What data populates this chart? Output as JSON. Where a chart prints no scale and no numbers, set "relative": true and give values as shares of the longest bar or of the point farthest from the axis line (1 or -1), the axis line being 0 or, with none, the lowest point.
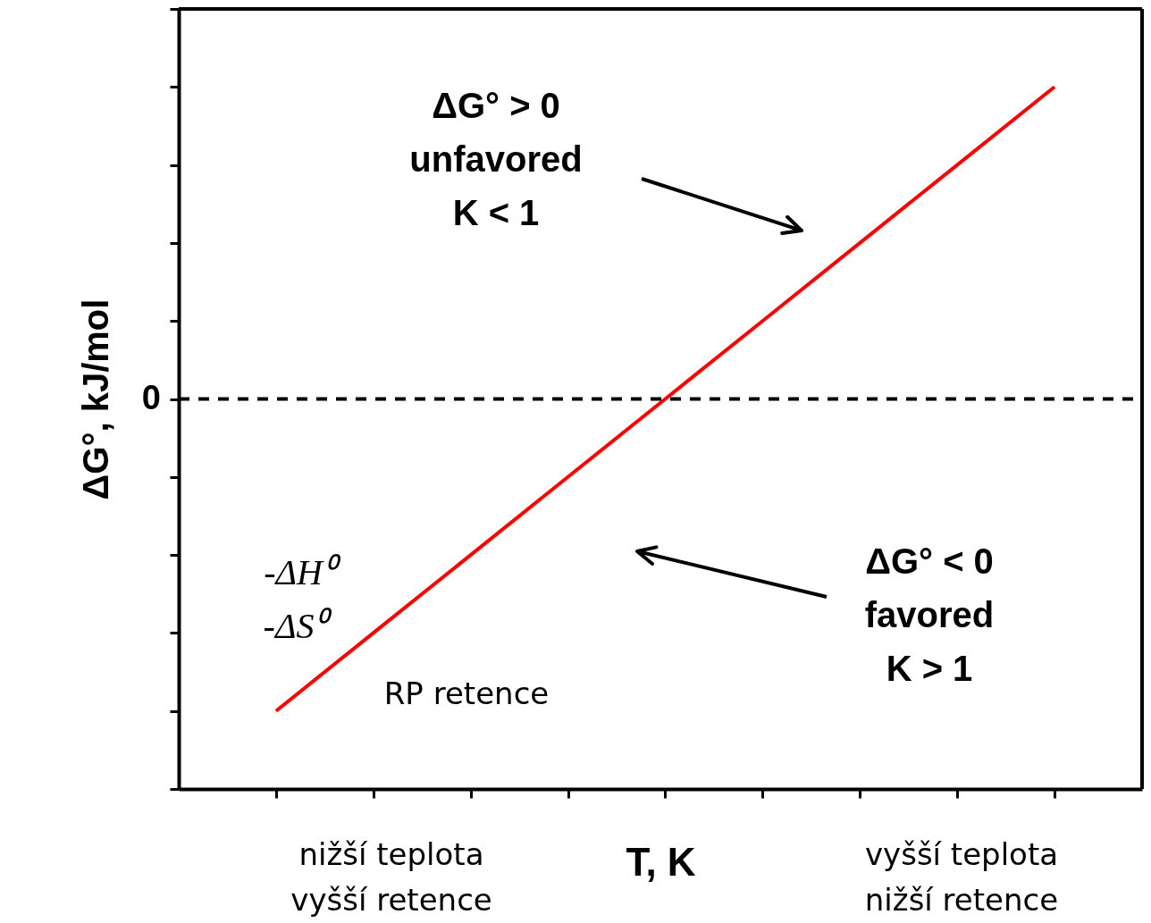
{
  "chart_data": {
    "type": "line",
    "relative": true,
    "xlabel": "T, K",
    "ylabel": "ΔG°, kJ/mol",
    "categories": [
      null,
      null,
      null,
      null,
      null,
      null,
      null,
      null,
      null
    ],
    "series": [
      {
        "color": "#ff0000",
        "values": [
          -1,
          -0.75,
          -0.5,
          -0.25,
          0,
          0.25,
          0.5,
          0.75,
          1
        ]
      }
    ],
    "ref_lines": [
      {
        "axis": "y",
        "value": 0,
        "label": "0",
        "line_style": "dashed",
        "color": "#000000"
      }
    ],
    "annotations": [
      "ΔG° > 0\nunfavored\nK < 1",
      "ΔG° < 0\nfavored\nK > 1",
      "-ΔH⁰",
      "-ΔS⁰",
      "RP retence",
      "nižší teplota\nvyšší retence",
      "vyšší teplota\nnižší retence"
    ],
    "grid": false,
    "marker": "none",
    "line_style": "solid"
  }
}
